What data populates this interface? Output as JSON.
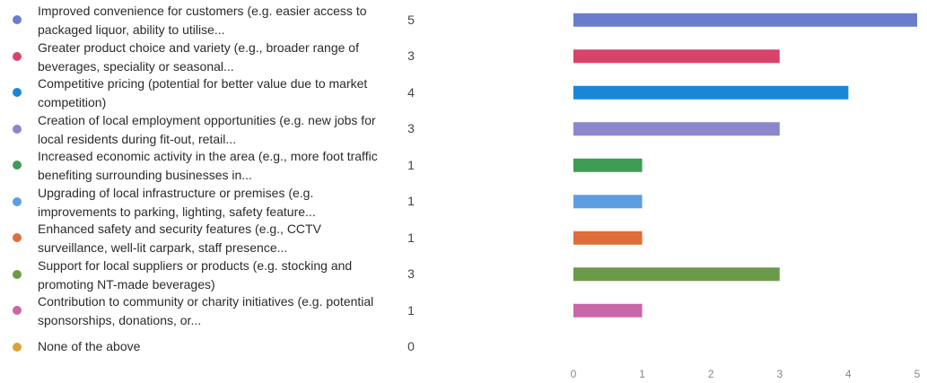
{
  "chart_data": {
    "type": "bar",
    "orientation": "horizontal",
    "categories": [
      "Improved convenience for customers (e.g. easier access to packaged liquor, ability to utilise...",
      "Greater product choice and variety (e.g., broader range of beverages, speciality or seasonal...",
      "Competitive pricing (potential for better value due to market competition)",
      "Creation of local employment opportunities (e.g. new jobs for local residents during fit-out, retail...",
      "Increased economic activity in the area (e.g., more foot traffic benefiting surrounding businesses in...",
      "Upgrading of local infrastructure or premises (e.g. improvements to parking, lighting, safety feature...",
      "Enhanced safety and security features (e.g., CCTV surveillance, well-lit carpark, staff presence...",
      "Support for local suppliers or products (e.g. stocking and promoting NT-made beverages)",
      "Contribution to community or charity initiatives (e.g. potential sponsorships, donations, or...",
      "None of the above"
    ],
    "values": [
      5,
      3,
      4,
      3,
      1,
      1,
      1,
      3,
      1,
      0
    ],
    "counts": [
      "5",
      "3",
      "4",
      "3",
      "1",
      "1",
      "1",
      "3",
      "1",
      "0"
    ],
    "colors": [
      "#6b7ccc",
      "#d9436a",
      "#1a86d8",
      "#8c86cc",
      "#3f9c57",
      "#5c9fe0",
      "#e06d3c",
      "#6b9a4a",
      "#c967a8",
      "#d6a535"
    ],
    "xlim": [
      0,
      5
    ],
    "xticks": [
      "0",
      "1",
      "2",
      "3",
      "4",
      "5"
    ],
    "grid": false,
    "title": "",
    "xlabel": "",
    "ylabel": ""
  }
}
